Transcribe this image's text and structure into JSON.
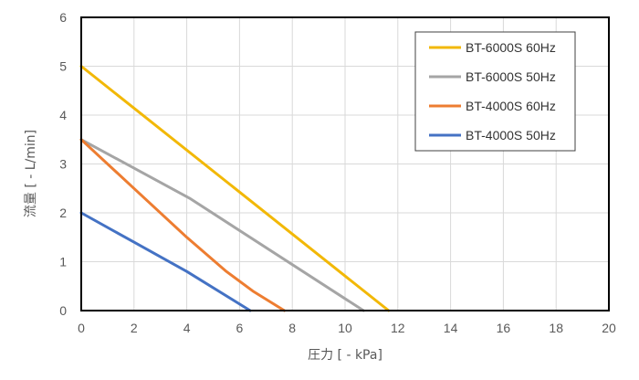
{
  "chart_data": {
    "type": "line",
    "title": "",
    "xlabel": "圧力 [ - kPa]",
    "ylabel": "流量 [ - L/min]",
    "xlim": [
      0,
      20
    ],
    "ylim": [
      0,
      6
    ],
    "xticks": [
      0,
      2,
      4,
      6,
      8,
      10,
      12,
      14,
      16,
      18,
      20
    ],
    "yticks": [
      0,
      1,
      2,
      3,
      4,
      5,
      6
    ],
    "grid": true,
    "legend_position": "top-right",
    "series": [
      {
        "name": "BT-6000S 60Hz",
        "color": "#F2B807",
        "x": [
          0,
          11.65
        ],
        "y": [
          5.0,
          0
        ]
      },
      {
        "name": "BT-6000S 50Hz",
        "color": "#A5A5A5",
        "x": [
          0,
          4.1,
          10.7
        ],
        "y": [
          3.5,
          2.3,
          0
        ]
      },
      {
        "name": "BT-4000S 60Hz",
        "color": "#ED7D31",
        "x": [
          0,
          2.0,
          4.0,
          5.5,
          6.5,
          7.7
        ],
        "y": [
          3.5,
          2.5,
          1.5,
          0.8,
          0.4,
          0
        ]
      },
      {
        "name": "BT-4000S 50Hz",
        "color": "#4472C4",
        "x": [
          0,
          2.0,
          4.0,
          6.4
        ],
        "y": [
          2.0,
          1.4,
          0.8,
          0
        ]
      }
    ]
  }
}
